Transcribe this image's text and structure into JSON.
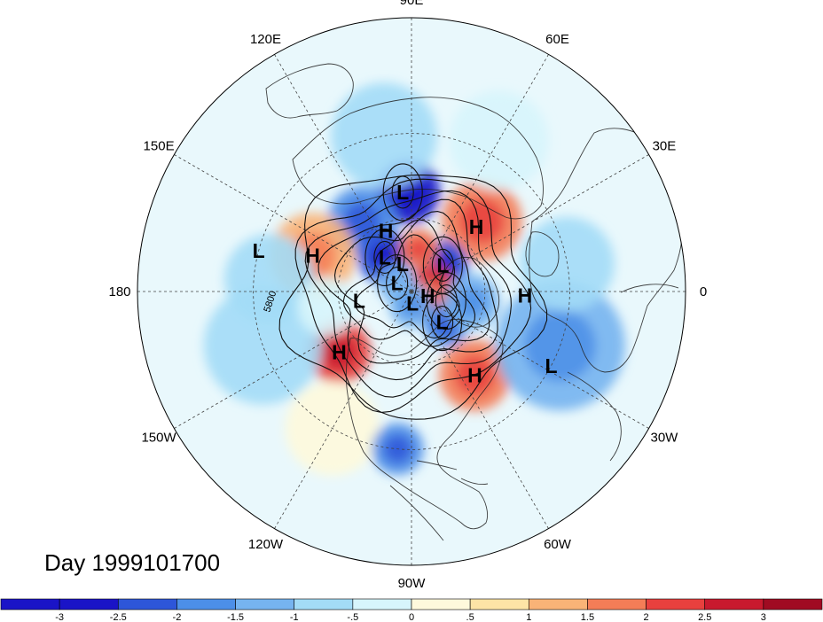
{
  "title": "Day 1999101700",
  "longitude_labels": [
    {
      "lon": 90,
      "text": "90E"
    },
    {
      "lon": 60,
      "text": "60E"
    },
    {
      "lon": 30,
      "text": "30E"
    },
    {
      "lon": 0,
      "text": "0"
    },
    {
      "lon": -30,
      "text": "30W"
    },
    {
      "lon": -60,
      "text": "60W"
    },
    {
      "lon": -90,
      "text": "90W"
    },
    {
      "lon": -120,
      "text": "120W"
    },
    {
      "lon": -150,
      "text": "150W"
    },
    {
      "lon": 180,
      "text": "180"
    },
    {
      "lon": 150,
      "text": "150E"
    },
    {
      "lon": 120,
      "text": "120E"
    }
  ],
  "pressure_systems": [
    {
      "type": "L",
      "lon": 95,
      "lat": 50
    },
    {
      "type": "H",
      "lon": 113,
      "lat": 63
    },
    {
      "type": "H",
      "lon": 45,
      "lat": 53
    },
    {
      "type": "L",
      "lon": 165,
      "lat": 30
    },
    {
      "type": "H",
      "lon": 160,
      "lat": 48
    },
    {
      "type": "L",
      "lon": 128,
      "lat": 72
    },
    {
      "type": "L",
      "lon": 108,
      "lat": 78
    },
    {
      "type": "L",
      "lon": 40,
      "lat": 73
    },
    {
      "type": "H",
      "lon": -15,
      "lat": 83
    },
    {
      "type": "L",
      "lon": 150,
      "lat": 83
    },
    {
      "type": "L",
      "lon": -170,
      "lat": 68
    },
    {
      "type": "L",
      "lon": -85,
      "lat": 85
    },
    {
      "type": "H",
      "lon": -2,
      "lat": 45
    },
    {
      "type": "H",
      "lon": -140,
      "lat": 52
    },
    {
      "type": "L",
      "lon": -45,
      "lat": 72
    },
    {
      "type": "H",
      "lon": -53,
      "lat": 48
    },
    {
      "type": "L",
      "lon": -28,
      "lat": 30
    }
  ],
  "contour_label": "5800",
  "colorbar": {
    "ticks": [
      "-3",
      "-2.5",
      "-2",
      "-1.5",
      "-1",
      "-.5",
      "0",
      ".5",
      "1",
      "1.5",
      "2",
      "2.5",
      "3"
    ],
    "colors": [
      "#1a14c7",
      "#2d56d9",
      "#4c8fe8",
      "#76b4f0",
      "#a3dcf7",
      "#d7f5fc",
      "#fef9dc",
      "#fde4a6",
      "#f9b377",
      "#f47d57",
      "#e8403e",
      "#c8192e",
      "#a00b22"
    ]
  },
  "anomaly_blobs": [
    {
      "lon": 92,
      "lat": 50,
      "r": 32,
      "value": -2.6
    },
    {
      "lon": 125,
      "lat": 55,
      "r": 35,
      "value": -1.6
    },
    {
      "lon": 45,
      "lat": 50,
      "r": 40,
      "value": 1.5
    },
    {
      "lon": 160,
      "lat": 48,
      "r": 42,
      "value": 1.3
    },
    {
      "lon": 128,
      "lat": 72,
      "r": 30,
      "value": -2.5
    },
    {
      "lon": 40,
      "lat": 73,
      "r": 28,
      "value": -2.4
    },
    {
      "lon": 80,
      "lat": 72,
      "r": 22,
      "value": 1.5
    },
    {
      "lon": 0,
      "lat": 82,
      "r": 30,
      "value": 2.3
    },
    {
      "lon": -30,
      "lat": 82,
      "r": 22,
      "value": 1.8
    },
    {
      "lon": 150,
      "lat": 83,
      "r": 22,
      "value": -1.2
    },
    {
      "lon": -90,
      "lat": 84,
      "r": 25,
      "value": -1.3
    },
    {
      "lon": -140,
      "lat": 52,
      "r": 32,
      "value": 2.2
    },
    {
      "lon": -45,
      "lat": 70,
      "r": 24,
      "value": -1.8
    },
    {
      "lon": -53,
      "lat": 48,
      "r": 35,
      "value": 1.5
    },
    {
      "lon": -20,
      "lat": 30,
      "r": 55,
      "value": -1.4
    },
    {
      "lon": 10,
      "lat": 30,
      "r": 40,
      "value": -0.8
    },
    {
      "lon": -160,
      "lat": 30,
      "r": 50,
      "value": -0.7
    },
    {
      "lon": 175,
      "lat": 35,
      "r": 40,
      "value": -0.9
    },
    {
      "lon": -120,
      "lat": 30,
      "r": 40,
      "value": 0.4
    },
    {
      "lon": -95,
      "lat": 30,
      "r": 22,
      "value": -1.8
    },
    {
      "lon": -10,
      "lat": 65,
      "r": 30,
      "value": -1.3
    },
    {
      "lon": 100,
      "lat": 30,
      "r": 45,
      "value": -0.6
    },
    {
      "lon": -170,
      "lat": 55,
      "r": 30,
      "value": -0.5
    },
    {
      "lon": 60,
      "lat": 25,
      "r": 40,
      "value": -0.4
    }
  ]
}
